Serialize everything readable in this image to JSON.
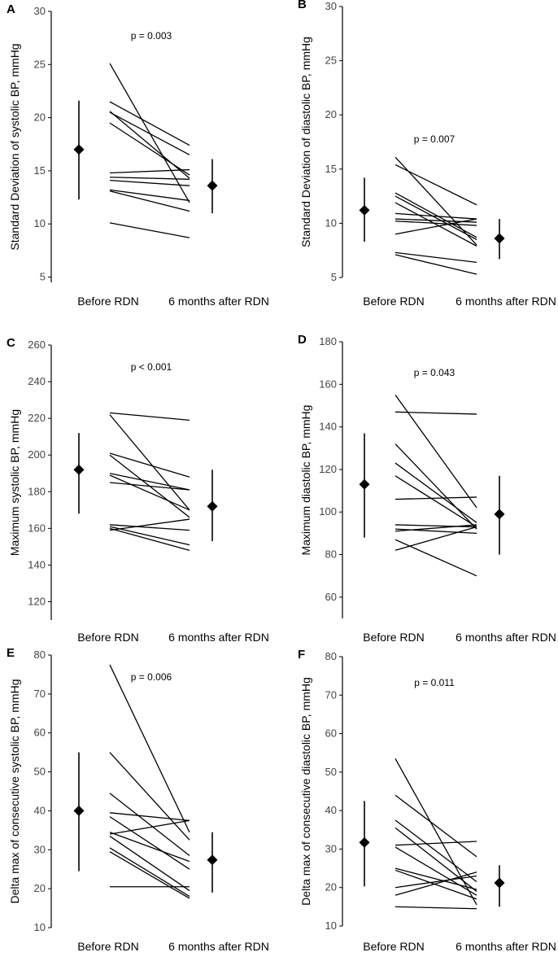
{
  "chart_data": [
    {
      "panel": "A",
      "type": "line",
      "ylabel": "Standard Deviation of systolic BP, mmHg",
      "categories": [
        "Before RDN",
        "6 months after RDN"
      ],
      "yticks": [
        5,
        10,
        15,
        20,
        25,
        30
      ],
      "ylim": [
        4.5,
        30
      ],
      "p_value": "p = 0.003",
      "mean_before": 17.0,
      "err_before": [
        12.3,
        21.6
      ],
      "mean_after": 13.6,
      "err_after": [
        11.0,
        16.1
      ],
      "series": [
        [
          25.1,
          12.0
        ],
        [
          21.5,
          17.4
        ],
        [
          20.6,
          14.3
        ],
        [
          20.5,
          16.5
        ],
        [
          19.5,
          14.6
        ],
        [
          14.8,
          15.1
        ],
        [
          14.4,
          14.2
        ],
        [
          14.1,
          13.6
        ],
        [
          13.2,
          12.2
        ],
        [
          13.1,
          11.2
        ],
        [
          10.1,
          8.7
        ]
      ]
    },
    {
      "panel": "B",
      "type": "line",
      "ylabel": "Standard Deviation of diastolic BP, mmHg",
      "categories": [
        "Before RDN",
        "6 months after RDN"
      ],
      "yticks": [
        5,
        10,
        15,
        20,
        25,
        30
      ],
      "ylim": [
        5,
        30
      ],
      "p_value": "p = 0.007",
      "mean_before": 11.2,
      "err_before": [
        8.3,
        14.2
      ],
      "mean_after": 8.6,
      "err_after": [
        6.7,
        10.4
      ],
      "series": [
        [
          16.1,
          8.0
        ],
        [
          15.4,
          11.7
        ],
        [
          12.8,
          8.7
        ],
        [
          12.5,
          8.5
        ],
        [
          11.9,
          7.9
        ],
        [
          10.9,
          10.4
        ],
        [
          10.4,
          10.1
        ],
        [
          10.2,
          9.8
        ],
        [
          9.0,
          10.4
        ],
        [
          7.3,
          6.4
        ],
        [
          7.1,
          5.3
        ]
      ]
    },
    {
      "panel": "C",
      "type": "line",
      "ylabel": "Maximum systolic BP, mmHg",
      "categories": [
        "Before RDN",
        "6 months after RDN"
      ],
      "yticks": [
        120,
        140,
        160,
        180,
        200,
        220,
        240,
        260
      ],
      "ylim": [
        110,
        260
      ],
      "p_value": "p < 0.001",
      "mean_before": 192,
      "err_before": [
        168,
        212
      ],
      "mean_after": 172,
      "err_after": [
        153,
        192
      ],
      "series": [
        [
          223,
          219
        ],
        [
          222,
          170
        ],
        [
          201,
          188
        ],
        [
          200,
          166
        ],
        [
          190,
          181
        ],
        [
          189,
          170
        ],
        [
          185,
          181
        ],
        [
          162,
          159
        ],
        [
          161,
          151
        ],
        [
          160,
          148
        ],
        [
          159,
          165
        ]
      ]
    },
    {
      "panel": "D",
      "type": "line",
      "ylabel": "Maximum diastolic BP, mmHg",
      "categories": [
        "Before RDN",
        "6 months after RDN"
      ],
      "yticks": [
        60,
        80,
        100,
        120,
        140,
        160,
        180
      ],
      "ylim": [
        50,
        180
      ],
      "p_value": "p = 0.043",
      "mean_before": 113,
      "err_before": [
        88,
        137
      ],
      "mean_after": 99,
      "err_after": [
        80,
        117
      ],
      "series": [
        [
          155,
          102
        ],
        [
          147,
          146
        ],
        [
          132,
          92
        ],
        [
          123,
          95
        ],
        [
          117,
          93
        ],
        [
          106,
          107
        ],
        [
          94,
          93
        ],
        [
          92,
          90
        ],
        [
          87,
          70
        ],
        [
          91,
          94
        ],
        [
          82,
          93
        ]
      ]
    },
    {
      "panel": "E",
      "type": "line",
      "ylabel": "Delta max of consecutive systolic BP, mmHg",
      "categories": [
        "Before RDN",
        "6 months after RDN"
      ],
      "yticks": [
        10,
        20,
        30,
        40,
        50,
        60,
        70,
        80
      ],
      "ylim": [
        10,
        80
      ],
      "p_value": "p = 0.006",
      "mean_before": 40,
      "err_before": [
        24.5,
        55
      ],
      "mean_after": 27.4,
      "err_after": [
        19,
        34.5
      ],
      "series": [
        [
          77.5,
          34.5
        ],
        [
          55,
          32.5
        ],
        [
          44.5,
          28.5
        ],
        [
          39.5,
          37.5
        ],
        [
          38.5,
          25
        ],
        [
          34.5,
          27
        ],
        [
          34,
          37.5
        ],
        [
          33.5,
          19.5
        ],
        [
          30.5,
          18
        ],
        [
          29.5,
          17.5
        ],
        [
          20.5,
          20.5
        ]
      ]
    },
    {
      "panel": "F",
      "type": "line",
      "ylabel": "Delta max of consecutive diastolic BP, mmHg",
      "categories": [
        "Before RDN",
        "6 months after RDN"
      ],
      "yticks": [
        10,
        20,
        30,
        40,
        50,
        60,
        70,
        80
      ],
      "ylim": [
        10,
        80
      ],
      "p_value": "p = 0.011",
      "mean_before": 31.7,
      "err_before": [
        20.3,
        42.5
      ],
      "mean_after": 21.2,
      "err_after": [
        15,
        25.8
      ],
      "series": [
        [
          53.5,
          15.5
        ],
        [
          44,
          28
        ],
        [
          37.5,
          21.5
        ],
        [
          35.5,
          19
        ],
        [
          31,
          32
        ],
        [
          30.5,
          18
        ],
        [
          25,
          19.5
        ],
        [
          24.5,
          17
        ],
        [
          18,
          24
        ],
        [
          15,
          14.5
        ],
        [
          20,
          23
        ]
      ]
    }
  ]
}
